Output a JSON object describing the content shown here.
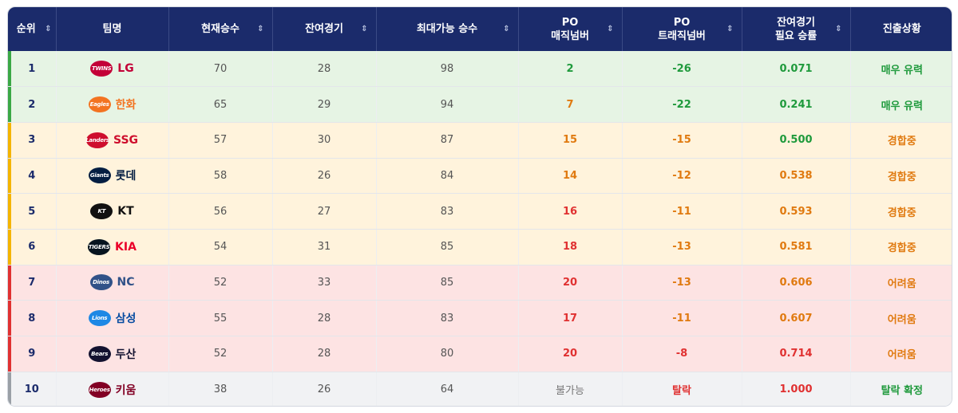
{
  "headers": [
    {
      "key": "rank",
      "lines": [
        "순위"
      ],
      "sortable": true
    },
    {
      "key": "team",
      "lines": [
        "팀명"
      ],
      "sortable": false
    },
    {
      "key": "wins",
      "lines": [
        "현재승수"
      ],
      "sortable": true
    },
    {
      "key": "remaining",
      "lines": [
        "잔여경기"
      ],
      "sortable": true
    },
    {
      "key": "maxwins",
      "lines": [
        "최대가능 승수"
      ],
      "sortable": true
    },
    {
      "key": "magic",
      "lines": [
        "PO",
        "매직넘버"
      ],
      "sortable": true
    },
    {
      "key": "tragic",
      "lines": [
        "PO",
        "트래직넘버"
      ],
      "sortable": true
    },
    {
      "key": "needpct",
      "lines": [
        "잔여경기",
        "필요 승률"
      ],
      "sortable": true
    },
    {
      "key": "status",
      "lines": [
        "진출상황"
      ],
      "sortable": false
    }
  ],
  "sort_icon": "⇕",
  "colors": {
    "green_bg": "#e6f4e4",
    "yellow_bg": "#fff3dc",
    "red_bg": "#fde3e3",
    "gray_bg": "#f1f2f4",
    "green_bar": "#3aa845",
    "yellow_bar": "#f4b400",
    "red_bar": "#e03131",
    "gray_bar": "#9aa0a6",
    "green_text": "#1f9a3c",
    "orange_text": "#e07a10",
    "red_text": "#e03131",
    "gray_text": "#777777"
  },
  "rows": [
    {
      "rank": "1",
      "team": "LG",
      "logo_text": "TWINS",
      "logo_icon": "twins-logo-icon",
      "team_color": "#c30037",
      "logo_bg": "#c30037",
      "wins": "70",
      "remaining": "28",
      "maxwins": "98",
      "magic": "2",
      "magic_color": "green",
      "tragic": "-26",
      "tragic_color": "green",
      "needpct": "0.071",
      "needpct_color": "green",
      "status": "매우 유력",
      "status_color": "green",
      "zone": "green"
    },
    {
      "rank": "2",
      "team": "한화",
      "logo_text": "Eagles",
      "logo_icon": "eagles-logo-icon",
      "team_color": "#f37321",
      "logo_bg": "#f37321",
      "wins": "65",
      "remaining": "29",
      "maxwins": "94",
      "magic": "7",
      "magic_color": "orange",
      "tragic": "-22",
      "tragic_color": "green",
      "needpct": "0.241",
      "needpct_color": "green",
      "status": "매우 유력",
      "status_color": "green",
      "zone": "green"
    },
    {
      "rank": "3",
      "team": "SSG",
      "logo_text": "Landers",
      "logo_icon": "landers-logo-icon",
      "team_color": "#ce0e2d",
      "logo_bg": "#ce0e2d",
      "wins": "57",
      "remaining": "30",
      "maxwins": "87",
      "magic": "15",
      "magic_color": "orange",
      "tragic": "-15",
      "tragic_color": "orange",
      "needpct": "0.500",
      "needpct_color": "green",
      "status": "경합중",
      "status_color": "orange",
      "zone": "yellow"
    },
    {
      "rank": "4",
      "team": "롯데",
      "logo_text": "Giants",
      "logo_icon": "giants-logo-icon",
      "team_color": "#041e42",
      "logo_bg": "#041e42",
      "wins": "58",
      "remaining": "26",
      "maxwins": "84",
      "magic": "14",
      "magic_color": "orange",
      "tragic": "-12",
      "tragic_color": "orange",
      "needpct": "0.538",
      "needpct_color": "orange",
      "status": "경합중",
      "status_color": "orange",
      "zone": "yellow"
    },
    {
      "rank": "5",
      "team": "KT",
      "logo_text": "KT",
      "logo_icon": "kt-wiz-logo-icon",
      "team_color": "#111111",
      "logo_bg": "#111111",
      "wins": "56",
      "remaining": "27",
      "maxwins": "83",
      "magic": "16",
      "magic_color": "red",
      "tragic": "-11",
      "tragic_color": "orange",
      "needpct": "0.593",
      "needpct_color": "orange",
      "status": "경합중",
      "status_color": "orange",
      "zone": "yellow"
    },
    {
      "rank": "6",
      "team": "KIA",
      "logo_text": "TIGERS",
      "logo_icon": "tigers-logo-icon",
      "team_color": "#ea0029",
      "logo_bg": "#06141f",
      "wins": "54",
      "remaining": "31",
      "maxwins": "85",
      "magic": "18",
      "magic_color": "red",
      "tragic": "-13",
      "tragic_color": "orange",
      "needpct": "0.581",
      "needpct_color": "orange",
      "status": "경합중",
      "status_color": "orange",
      "zone": "yellow"
    },
    {
      "rank": "7",
      "team": "NC",
      "logo_text": "Dinos",
      "logo_icon": "dinos-logo-icon",
      "team_color": "#315288",
      "logo_bg": "#315288",
      "wins": "52",
      "remaining": "33",
      "maxwins": "85",
      "magic": "20",
      "magic_color": "red",
      "tragic": "-13",
      "tragic_color": "orange",
      "needpct": "0.606",
      "needpct_color": "orange",
      "status": "어려움",
      "status_color": "orange",
      "zone": "red"
    },
    {
      "rank": "8",
      "team": "삼성",
      "logo_text": "Lions",
      "logo_icon": "lions-logo-icon",
      "team_color": "#074ca1",
      "logo_bg": "#1e88e5",
      "wins": "55",
      "remaining": "28",
      "maxwins": "83",
      "magic": "17",
      "magic_color": "red",
      "tragic": "-11",
      "tragic_color": "orange",
      "needpct": "0.607",
      "needpct_color": "orange",
      "status": "어려움",
      "status_color": "orange",
      "zone": "red"
    },
    {
      "rank": "9",
      "team": "두산",
      "logo_text": "Bears",
      "logo_icon": "bears-logo-icon",
      "team_color": "#131230",
      "logo_bg": "#131230",
      "wins": "52",
      "remaining": "28",
      "maxwins": "80",
      "magic": "20",
      "magic_color": "red",
      "tragic": "-8",
      "tragic_color": "red",
      "needpct": "0.714",
      "needpct_color": "red",
      "status": "어려움",
      "status_color": "orange",
      "zone": "red"
    },
    {
      "rank": "10",
      "team": "키움",
      "logo_text": "Heroes",
      "logo_icon": "heroes-logo-icon",
      "team_color": "#820024",
      "logo_bg": "#820024",
      "wins": "38",
      "remaining": "26",
      "maxwins": "64",
      "magic": "불가능",
      "magic_color": "gray",
      "tragic": "탈락",
      "tragic_color": "red",
      "needpct": "1.000",
      "needpct_color": "red",
      "status": "탈락 확정",
      "status_color": "green",
      "zone": "gray"
    }
  ]
}
